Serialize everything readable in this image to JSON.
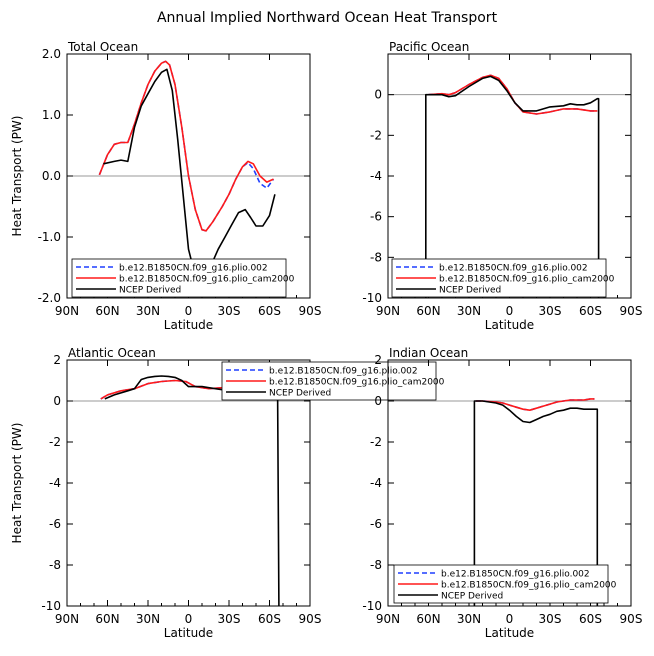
{
  "figure_title": "Annual Implied Northward Ocean Heat Transport",
  "colors": {
    "series_002": "#1f3fff",
    "series_cam2000": "#ff1a1a",
    "series_ncep": "#000000",
    "zero_line": "#999999"
  },
  "chart_data": [
    {
      "type": "line",
      "title": "Total Ocean",
      "xlabel": "Latitude",
      "ylabel": "Heat Transport (PW)",
      "x_ticks": [
        -90,
        -60,
        -30,
        0,
        30,
        60,
        90
      ],
      "x_tick_labels": [
        "90N",
        "60N",
        "30N",
        "0",
        "30S",
        "60S",
        "90S"
      ],
      "xlim": [
        -90,
        90
      ],
      "ylim": [
        -2.0,
        2.0
      ],
      "y_ticks": [
        -2.0,
        -1.0,
        0.0,
        1.0,
        2.0
      ],
      "y_tick_labels": [
        "-2.0",
        "-1.0",
        "0.0",
        "1.0",
        "2.0"
      ],
      "zero_line": true,
      "legend": [
        "b.e12.B1850CN.f09_g16.plio.002",
        "b.e12.B1850CN.f09_g16.plio_cam2000",
        "NCEP Derived"
      ],
      "legend_position": "bottom-left",
      "series": [
        {
          "name": "b.e12.B1850CN.f09_g16.plio.002",
          "style": "dashed",
          "color": "#1f3fff",
          "x": [
            -66,
            -60,
            -55,
            -50,
            -45,
            -40,
            -35,
            -30,
            -25,
            -20,
            -17,
            -14,
            -10,
            -5,
            0,
            5,
            10,
            13,
            18,
            25,
            30,
            35,
            40,
            44,
            48,
            53,
            58,
            63
          ],
          "y": [
            0.02,
            0.35,
            0.52,
            0.55,
            0.55,
            0.85,
            1.2,
            1.5,
            1.72,
            1.85,
            1.88,
            1.82,
            1.5,
            0.8,
            0.0,
            -0.55,
            -0.88,
            -0.9,
            -0.75,
            -0.5,
            -0.3,
            -0.05,
            0.15,
            0.22,
            0.12,
            -0.12,
            -0.2,
            -0.05
          ]
        },
        {
          "name": "b.e12.B1850CN.f09_g16.plio_cam2000",
          "style": "solid",
          "color": "#ff1a1a",
          "x": [
            -66,
            -60,
            -55,
            -50,
            -45,
            -40,
            -35,
            -30,
            -25,
            -20,
            -17,
            -14,
            -10,
            -5,
            0,
            5,
            10,
            13,
            18,
            25,
            30,
            35,
            40,
            44,
            48,
            53,
            58,
            63
          ],
          "y": [
            0.02,
            0.35,
            0.52,
            0.55,
            0.55,
            0.85,
            1.2,
            1.5,
            1.72,
            1.85,
            1.88,
            1.82,
            1.5,
            0.8,
            0.0,
            -0.55,
            -0.88,
            -0.9,
            -0.75,
            -0.5,
            -0.3,
            -0.05,
            0.15,
            0.24,
            0.2,
            0.0,
            -0.1,
            -0.05
          ]
        },
        {
          "name": "NCEP Derived",
          "style": "solid",
          "color": "#000000",
          "x": [
            -63,
            -55,
            -50,
            -45,
            -40,
            -35,
            -30,
            -25,
            -20,
            -16,
            -12,
            -8,
            -4,
            0,
            4,
            8,
            12,
            18,
            22,
            27,
            32,
            37,
            42,
            46,
            50,
            55,
            60,
            64
          ],
          "y": [
            0.2,
            0.24,
            0.26,
            0.24,
            0.8,
            1.15,
            1.35,
            1.55,
            1.7,
            1.75,
            1.4,
            0.6,
            -0.3,
            -1.2,
            -1.55,
            -1.65,
            -1.6,
            -1.4,
            -1.2,
            -1.0,
            -0.8,
            -0.6,
            -0.55,
            -0.68,
            -0.82,
            -0.82,
            -0.65,
            -0.3
          ]
        }
      ]
    },
    {
      "type": "line",
      "title": "Pacific Ocean",
      "xlabel": "Latitude",
      "ylabel": "",
      "x_ticks": [
        -90,
        -60,
        -30,
        0,
        30,
        60,
        90
      ],
      "x_tick_labels": [
        "90N",
        "60N",
        "30N",
        "0",
        "30S",
        "60S",
        "90S"
      ],
      "xlim": [
        -90,
        90
      ],
      "ylim": [
        -10,
        2
      ],
      "y_ticks": [
        -10,
        -8,
        -6,
        -4,
        -2,
        0
      ],
      "y_tick_labels": [
        "-10",
        "-8",
        "-6",
        "-4",
        "-2",
        "0"
      ],
      "zero_line": true,
      "legend": [
        "b.e12.B1850CN.f09_g16.plio.002",
        "b.e12.B1850CN.f09_g16.plio_cam2000",
        "NCEP Derived"
      ],
      "legend_position": "bottom-left",
      "series": [
        {
          "name": "b.e12.B1850CN.f09_g16.plio.002",
          "style": "dashed",
          "color": "#1f3fff",
          "x": [
            -60,
            -50,
            -45,
            -40,
            -30,
            -20,
            -14,
            -8,
            -2,
            4,
            10,
            20,
            30,
            40,
            50,
            60,
            65
          ],
          "y": [
            0.0,
            0.05,
            0.0,
            0.1,
            0.5,
            0.85,
            0.95,
            0.8,
            0.3,
            -0.4,
            -0.85,
            -0.95,
            -0.85,
            -0.7,
            -0.7,
            -0.8,
            -0.8
          ]
        },
        {
          "name": "b.e12.B1850CN.f09_g16.plio_cam2000",
          "style": "solid",
          "color": "#ff1a1a",
          "x": [
            -60,
            -50,
            -45,
            -40,
            -30,
            -20,
            -14,
            -8,
            -2,
            4,
            10,
            20,
            30,
            40,
            50,
            60,
            65
          ],
          "y": [
            0.0,
            0.05,
            0.0,
            0.1,
            0.5,
            0.85,
            0.95,
            0.8,
            0.3,
            -0.4,
            -0.85,
            -0.95,
            -0.85,
            -0.7,
            -0.7,
            -0.8,
            -0.8
          ]
        },
        {
          "name": "NCEP Derived",
          "style": "solid",
          "color": "#000000",
          "x": [
            -62,
            -62,
            -50,
            -45,
            -40,
            -30,
            -20,
            -14,
            -8,
            -2,
            4,
            10,
            20,
            30,
            40,
            45,
            50,
            55,
            60,
            65,
            66,
            66
          ],
          "y": [
            -10,
            0.0,
            0.0,
            -0.1,
            -0.05,
            0.4,
            0.8,
            0.9,
            0.7,
            0.2,
            -0.4,
            -0.8,
            -0.8,
            -0.6,
            -0.55,
            -0.45,
            -0.5,
            -0.5,
            -0.4,
            -0.2,
            -0.2,
            -10
          ]
        }
      ]
    },
    {
      "type": "line",
      "title": "Atlantic Ocean",
      "xlabel": "Latitude",
      "ylabel": "Heat Transport (PW)",
      "x_ticks": [
        -90,
        -60,
        -30,
        0,
        30,
        60,
        90
      ],
      "x_tick_labels": [
        "90N",
        "60N",
        "30N",
        "0",
        "30S",
        "60S",
        "90S"
      ],
      "xlim": [
        -90,
        90
      ],
      "ylim": [
        -10,
        2
      ],
      "y_ticks": [
        -10,
        -8,
        -6,
        -4,
        -2,
        0,
        2
      ],
      "y_tick_labels": [
        "-10",
        "-8",
        "-6",
        "-4",
        "-2",
        "0",
        "2"
      ],
      "zero_line": true,
      "legend": [
        "b.e12.B1850CN.f09_g16.plio.002",
        "b.e12.B1850CN.f09_g16.plio_cam2000",
        "NCEP Derived"
      ],
      "legend_position": "top-center",
      "series": [
        {
          "name": "b.e12.B1850CN.f09_g16.plio.002",
          "style": "dashed",
          "color": "#1f3fff",
          "x": [
            -65,
            -60,
            -50,
            -40,
            -30,
            -20,
            -10,
            -2,
            5,
            15,
            25,
            35,
            45,
            55,
            62
          ],
          "y": [
            0.1,
            0.3,
            0.5,
            0.6,
            0.85,
            0.95,
            1.0,
            0.95,
            0.7,
            0.6,
            0.65,
            0.55,
            0.6,
            0.6,
            0.55
          ]
        },
        {
          "name": "b.e12.B1850CN.f09_g16.plio_cam2000",
          "style": "solid",
          "color": "#ff1a1a",
          "x": [
            -65,
            -60,
            -50,
            -40,
            -30,
            -20,
            -10,
            -2,
            5,
            15,
            25,
            35,
            45,
            55,
            62
          ],
          "y": [
            0.1,
            0.3,
            0.5,
            0.6,
            0.85,
            0.95,
            1.0,
            0.95,
            0.7,
            0.6,
            0.65,
            0.55,
            0.6,
            0.6,
            0.55
          ]
        },
        {
          "name": "NCEP Derived",
          "style": "solid",
          "color": "#000000",
          "x": [
            -62,
            -55,
            -45,
            -40,
            -35,
            -30,
            -25,
            -20,
            -15,
            -10,
            -5,
            0,
            5,
            10,
            15,
            20,
            25,
            30,
            35,
            40,
            45,
            50,
            55,
            60,
            65,
            66,
            67
          ],
          "y": [
            0.1,
            0.3,
            0.5,
            0.6,
            1.05,
            1.15,
            1.2,
            1.22,
            1.2,
            1.15,
            1.0,
            0.7,
            0.7,
            0.7,
            0.65,
            0.6,
            0.55,
            0.55,
            0.5,
            0.45,
            0.5,
            0.55,
            0.6,
            0.55,
            0.5,
            0.45,
            -10
          ]
        }
      ]
    },
    {
      "type": "line",
      "title": "Indian Ocean",
      "xlabel": "Latitude",
      "ylabel": "",
      "x_ticks": [
        -90,
        -60,
        -30,
        0,
        30,
        60,
        90
      ],
      "x_tick_labels": [
        "90N",
        "60N",
        "30N",
        "0",
        "30S",
        "60S",
        "90S"
      ],
      "xlim": [
        -90,
        90
      ],
      "ylim": [
        -10,
        2
      ],
      "y_ticks": [
        -10,
        -8,
        -6,
        -4,
        -2,
        0,
        2
      ],
      "y_tick_labels": [
        "-10",
        "-8",
        "-6",
        "-4",
        "-2",
        "0",
        "2"
      ],
      "zero_line": true,
      "legend": [
        "b.e12.B1850CN.f09_g16.plio.002",
        "b.e12.B1850CN.f09_g16.plio_cam2000",
        "NCEP Derived"
      ],
      "legend_position": "bottom-left",
      "series": [
        {
          "name": "b.e12.B1850CN.f09_g16.plio.002",
          "style": "dashed",
          "color": "#1f3fff",
          "x": [
            -25,
            -20,
            -10,
            -5,
            0,
            5,
            10,
            15,
            20,
            25,
            30,
            35,
            40,
            45,
            50,
            55,
            60,
            63
          ],
          "y": [
            0.0,
            0.0,
            -0.05,
            -0.1,
            -0.2,
            -0.3,
            -0.4,
            -0.45,
            -0.35,
            -0.25,
            -0.15,
            -0.05,
            0.0,
            0.05,
            0.05,
            0.05,
            0.1,
            0.1
          ]
        },
        {
          "name": "b.e12.B1850CN.f09_g16.plio_cam2000",
          "style": "solid",
          "color": "#ff1a1a",
          "x": [
            -25,
            -20,
            -10,
            -5,
            0,
            5,
            10,
            15,
            20,
            25,
            30,
            35,
            40,
            45,
            50,
            55,
            60,
            63
          ],
          "y": [
            0.0,
            0.0,
            -0.05,
            -0.1,
            -0.2,
            -0.3,
            -0.4,
            -0.45,
            -0.35,
            -0.25,
            -0.15,
            -0.05,
            0.0,
            0.05,
            0.05,
            0.05,
            0.1,
            0.1
          ]
        },
        {
          "name": "NCEP Derived",
          "style": "solid",
          "color": "#000000",
          "x": [
            -26,
            -26,
            -20,
            -10,
            -5,
            0,
            5,
            10,
            15,
            20,
            25,
            30,
            35,
            40,
            45,
            50,
            55,
            60,
            64,
            65,
            65
          ],
          "y": [
            -10,
            0.0,
            0.0,
            -0.1,
            -0.2,
            -0.45,
            -0.75,
            -1.0,
            -1.05,
            -0.9,
            -0.75,
            -0.65,
            -0.5,
            -0.45,
            -0.35,
            -0.35,
            -0.4,
            -0.4,
            -0.4,
            -0.4,
            -10
          ]
        }
      ]
    }
  ]
}
